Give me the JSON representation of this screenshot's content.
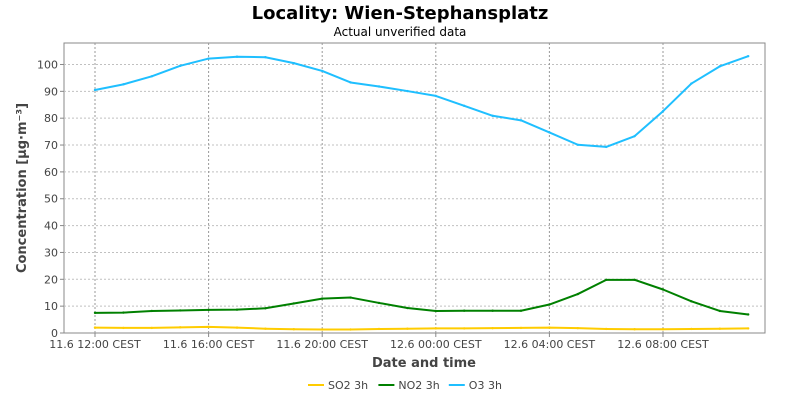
{
  "chart_data": {
    "type": "line",
    "title": "Locality: Wien-Stephansplatz",
    "subtitle": "Actual unverified data",
    "xlabel": "Date and time",
    "ylabel": "Concentration [µg·m⁻³]",
    "ylim": [
      0,
      108
    ],
    "yticks": [
      0,
      10,
      20,
      30,
      40,
      50,
      60,
      70,
      80,
      90,
      100
    ],
    "xlim": [
      0,
      23.4
    ],
    "xticks": [
      {
        "x": 0,
        "label": "11.6 12:00 CEST"
      },
      {
        "x": 4,
        "label": "11.6 16:00 CEST"
      },
      {
        "x": 8,
        "label": "11.6 20:00 CEST"
      },
      {
        "x": 12,
        "label": "12.6 00:00 CEST"
      },
      {
        "x": 16,
        "label": "12.6 04:00 CEST"
      },
      {
        "x": 20,
        "label": "12.6 08:00 CEST"
      }
    ],
    "grid": true,
    "legend_position": "bottom",
    "x": [
      0,
      1,
      2,
      3,
      4,
      5,
      6,
      7,
      8,
      9,
      10,
      11,
      12,
      13,
      14,
      15,
      16,
      17,
      18,
      19,
      20,
      21,
      22,
      23
    ],
    "series": [
      {
        "name": "SO2 3h",
        "color": "#ffcc00",
        "values": [
          2.0,
          1.9,
          1.9,
          2.1,
          2.3,
          2.0,
          1.6,
          1.4,
          1.3,
          1.3,
          1.5,
          1.6,
          1.7,
          1.7,
          1.8,
          1.9,
          2.0,
          1.8,
          1.5,
          1.4,
          1.4,
          1.5,
          1.6,
          1.7
        ]
      },
      {
        "name": "NO2 3h",
        "color": "#008000",
        "values": [
          7.5,
          7.6,
          8.2,
          8.4,
          8.6,
          8.7,
          9.2,
          11,
          12.8,
          13.2,
          11.2,
          9.3,
          8.2,
          8.3,
          8.3,
          8.3,
          10.6,
          14.5,
          19.8,
          19.8,
          16.2,
          11.8,
          8.2,
          6.9
        ]
      },
      {
        "name": "O3 3h",
        "color": "#1fbfff",
        "values": [
          90.5,
          92.6,
          95.6,
          99.5,
          102.2,
          102.9,
          102.7,
          100.5,
          97.6,
          93.3,
          91.8,
          90.1,
          88.3,
          84.6,
          80.9,
          79.2,
          74.7,
          70.1,
          69.3,
          73.3,
          82.6,
          92.9,
          99.3,
          103.1
        ]
      }
    ]
  }
}
